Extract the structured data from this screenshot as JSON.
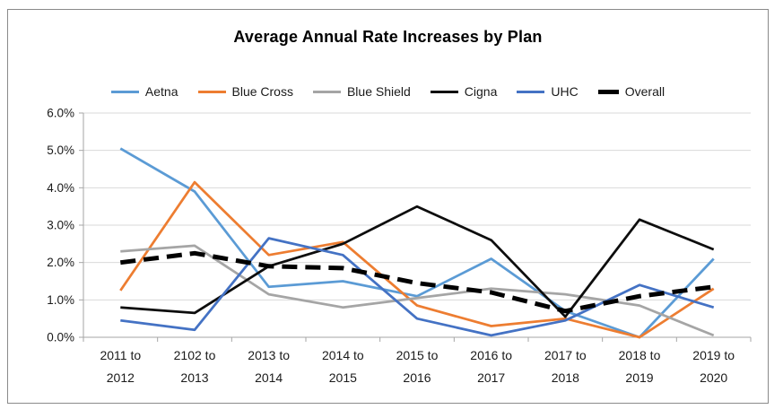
{
  "chart_data": {
    "type": "line",
    "title": "Average Annual Rate Increases by Plan",
    "xlabel": "",
    "ylabel": "",
    "ylim": [
      0,
      6
    ],
    "grid": "horizontal",
    "legend_position": "top",
    "categories": [
      "2011 to 2012",
      "2102 to 2013",
      "2013 to 2014",
      "2014 to 2015",
      "2015 to 2016",
      "2016 to 2017",
      "2017 to 2018",
      "2018 to 2019",
      "2019 to 2020"
    ],
    "xtick_lines": [
      [
        "2011 to",
        "2012"
      ],
      [
        "2102 to",
        "2013"
      ],
      [
        "2013 to",
        "2014"
      ],
      [
        "2014 to",
        "2015"
      ],
      [
        "2015 to",
        "2016"
      ],
      [
        "2016 to",
        "2017"
      ],
      [
        "2017 to",
        "2018"
      ],
      [
        "2018 to",
        "2019"
      ],
      [
        "2019 to",
        "2020"
      ]
    ],
    "yticks": [
      {
        "label": "0.0%",
        "value": 0
      },
      {
        "label": "1.0%",
        "value": 1
      },
      {
        "label": "2.0%",
        "value": 2
      },
      {
        "label": "3.0%",
        "value": 3
      },
      {
        "label": "4.0%",
        "value": 4
      },
      {
        "label": "5.0%",
        "value": 5
      },
      {
        "label": "6.0%",
        "value": 6
      }
    ],
    "series": [
      {
        "name": "Aetna",
        "color": "#5B9BD5",
        "line_style": "solid",
        "values": [
          5.05,
          3.9,
          1.35,
          1.5,
          1.1,
          2.1,
          0.7,
          0.0,
          2.1
        ]
      },
      {
        "name": "Blue Cross",
        "color": "#ED7D31",
        "line_style": "solid",
        "values": [
          1.25,
          4.15,
          2.2,
          2.55,
          0.85,
          0.3,
          0.5,
          0.0,
          1.3
        ]
      },
      {
        "name": "Blue Shield",
        "color": "#A5A5A5",
        "line_style": "solid",
        "values": [
          2.3,
          2.45,
          1.15,
          0.8,
          1.05,
          1.3,
          1.15,
          0.85,
          0.05
        ]
      },
      {
        "name": "Cigna",
        "color": "#0D0D0D",
        "line_style": "solid",
        "values": [
          0.8,
          0.65,
          1.9,
          2.5,
          3.5,
          2.6,
          0.55,
          3.15,
          2.35
        ]
      },
      {
        "name": "UHC",
        "color": "#4472C4",
        "line_style": "solid",
        "values": [
          0.45,
          0.2,
          2.65,
          2.2,
          0.5,
          0.05,
          0.45,
          1.4,
          0.8
        ]
      },
      {
        "name": "Overall",
        "color": "#000000",
        "line_style": "thick-dashed",
        "values": [
          2.0,
          2.25,
          1.9,
          1.85,
          1.45,
          1.2,
          0.7,
          1.1,
          1.35
        ]
      }
    ],
    "colors": {
      "gridline": "#D9D9D9",
      "axis": "#A6A6A6",
      "tick_text": "#1A1A1A",
      "title_text": "#000000"
    }
  }
}
